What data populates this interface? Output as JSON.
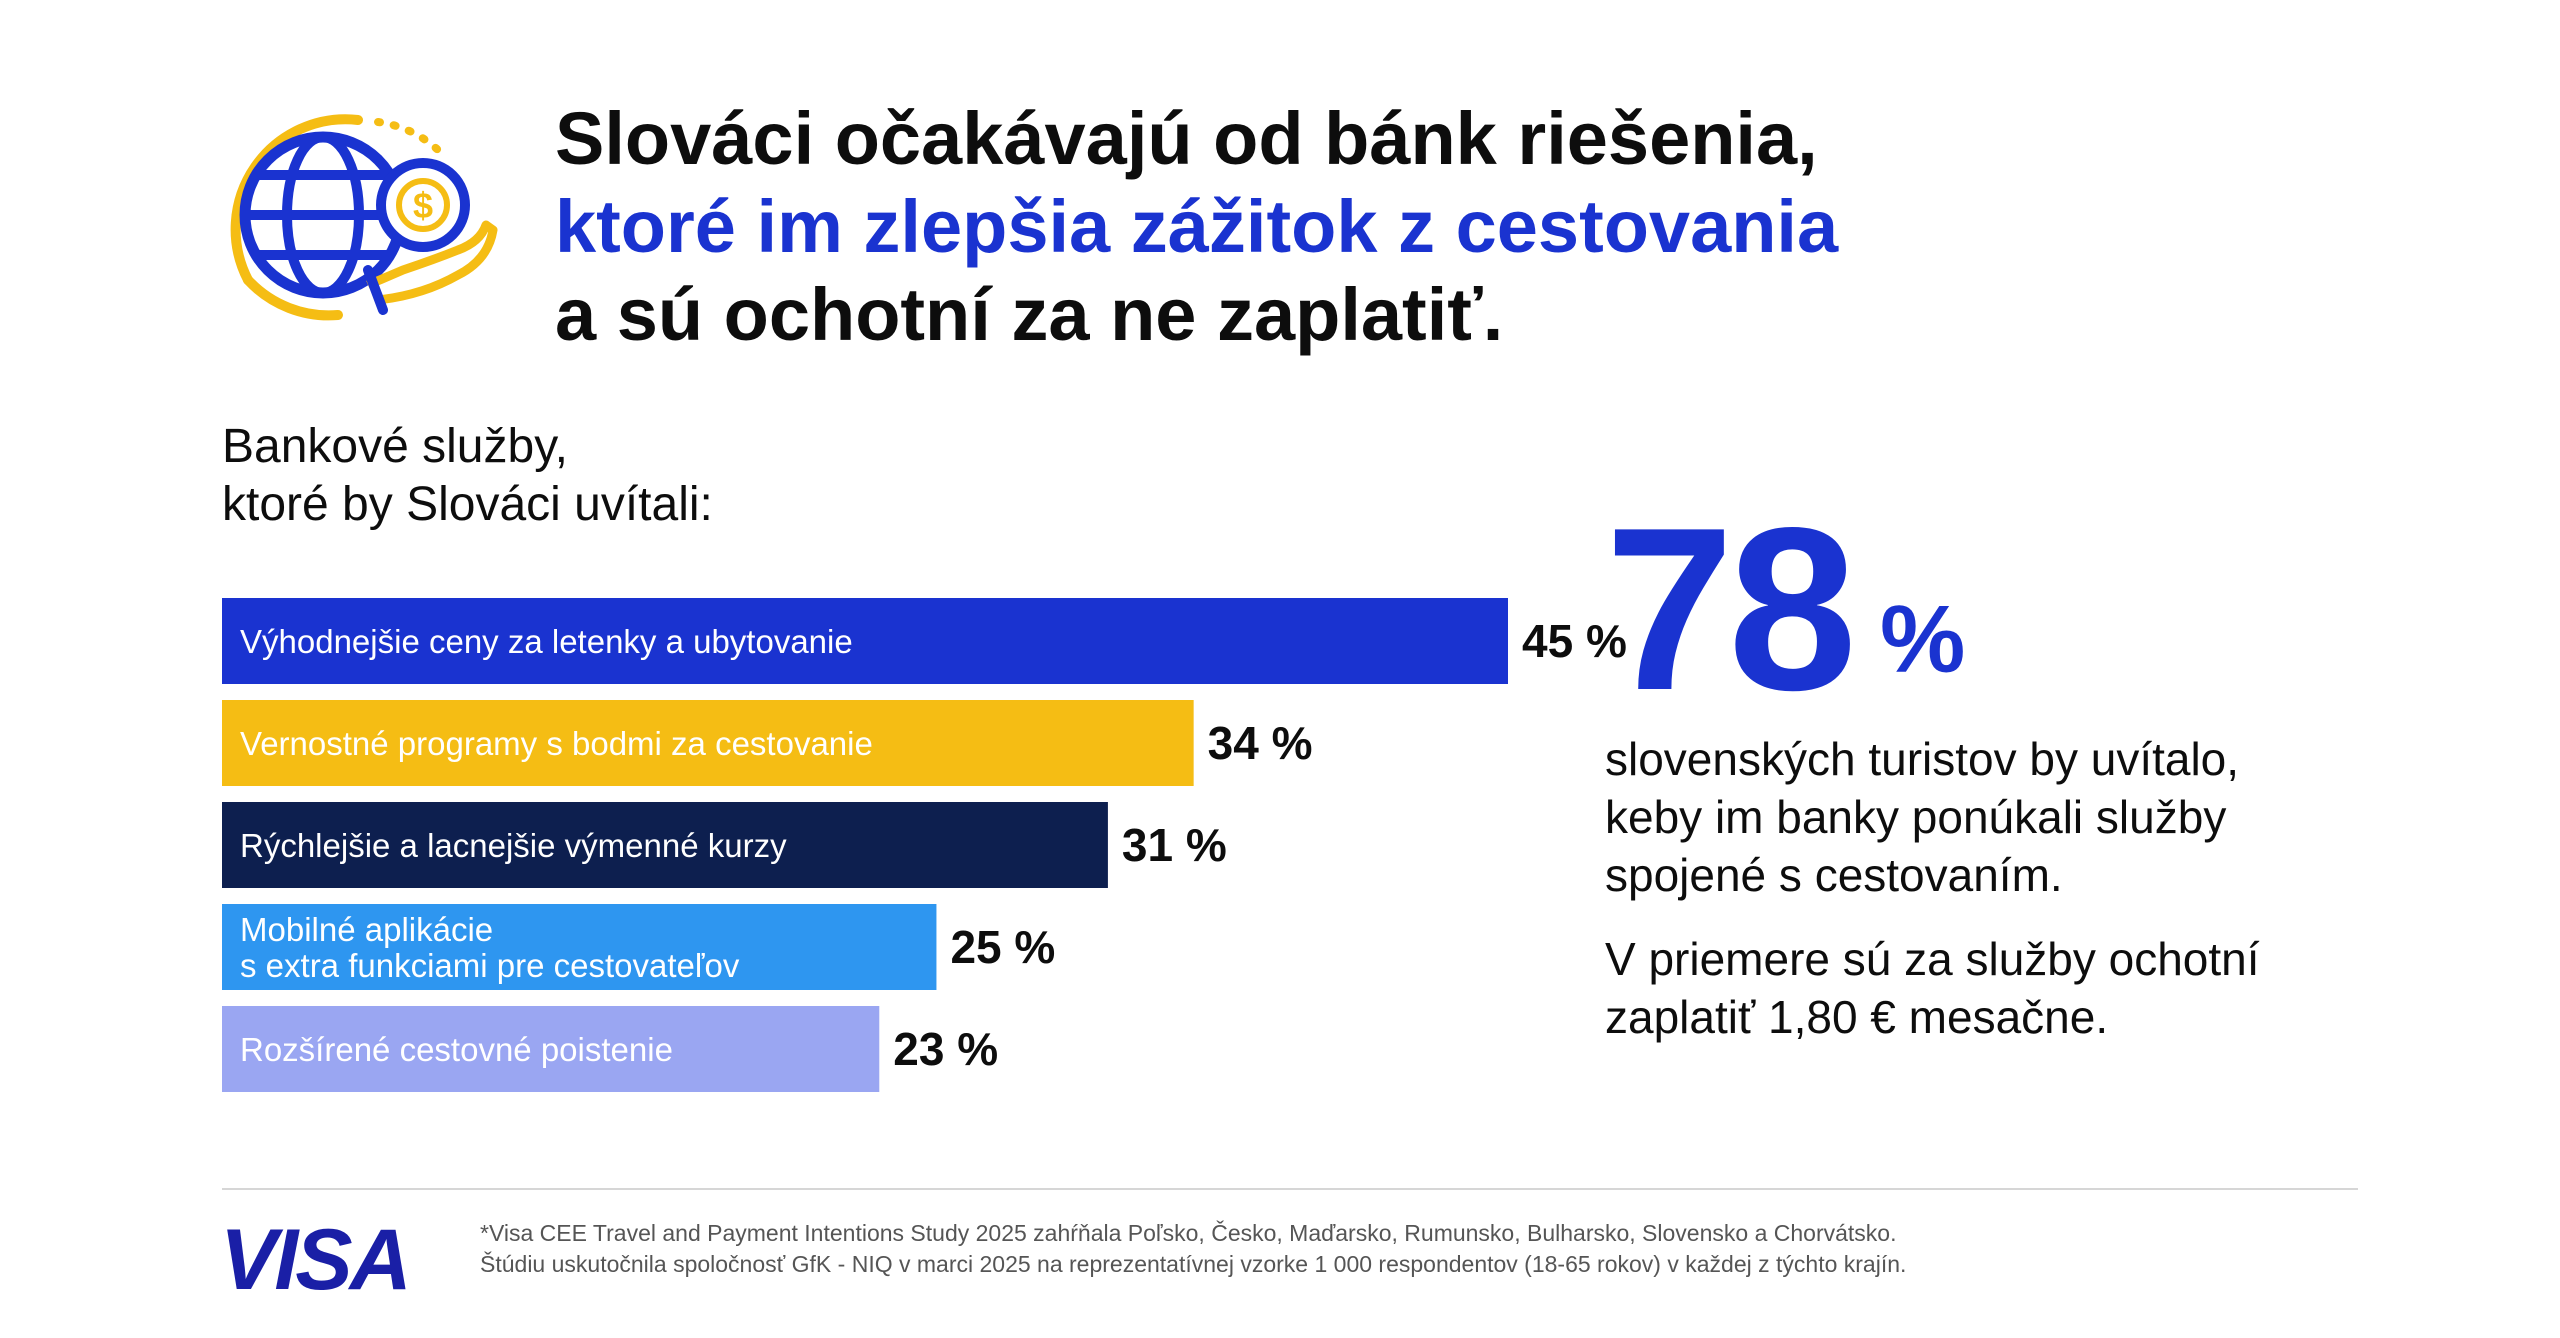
{
  "header": {
    "title_line1": "Slováci očakávajú od bánk riešenia,",
    "title_line2": "ktoré im zlepšia zážitok z cestovania",
    "title_line3": "a sú ochotní za ne zaplatiť."
  },
  "subtitle": {
    "line1": "Bankové služby,",
    "line2": "ktoré by Slováci uvítali:"
  },
  "chart_data": {
    "type": "bar",
    "orientation": "horizontal",
    "categories": [
      [
        "Výhodnejšie ceny za letenky a ubytovanie"
      ],
      [
        "Vernostné programy s bodmi za cestovanie"
      ],
      [
        "Rýchlejšie a lacnejšie výmenné kurzy"
      ],
      [
        "Mobilné aplikácie",
        "s extra funkciami pre cestovateľov"
      ],
      [
        "Rozšírené cestovné poistenie"
      ]
    ],
    "values": [
      45,
      34,
      31,
      25,
      23
    ],
    "value_labels": [
      "45 %",
      "34 %",
      "31 %",
      "25 %",
      "23 %"
    ],
    "colors": [
      "#1a33d0",
      "#f5bd14",
      "#0d1f4f",
      "#2e96f0",
      "#9aa6f2"
    ],
    "value_unit": "%"
  },
  "highlight": {
    "number": "78",
    "unit": "%",
    "text_lines": [
      "slovenských turistov by uvítalo,",
      "keby im banky ponúkali služby",
      "spojené s cestovaním."
    ],
    "text2_lines": [
      "V priemere sú za služby ochotní",
      "zaplatiť 1,80 € mesačne."
    ]
  },
  "footer": {
    "brand": "VISA",
    "note_line1": "*Visa CEE Travel and Payment Intentions Study 2025 zahŕňala Poľsko, Česko, Maďarsko, Rumunsko, Bulharsko, Slovensko a Chorvátsko.",
    "note_line2": "Štúdiu uskutočnila spoločnosť GfK - NIQ v marci 2025 na reprezentatívnej vzorke 1 000 respondentov (18-65 rokov) v každej z týchto krajín."
  },
  "colors": {
    "accent_blue": "#1a33d0",
    "gold": "#f5bd14",
    "navy": "#0d1f4f",
    "sky": "#2e96f0",
    "lavender": "#9aa6f2"
  },
  "icon": "globe-coin-hand-icon"
}
